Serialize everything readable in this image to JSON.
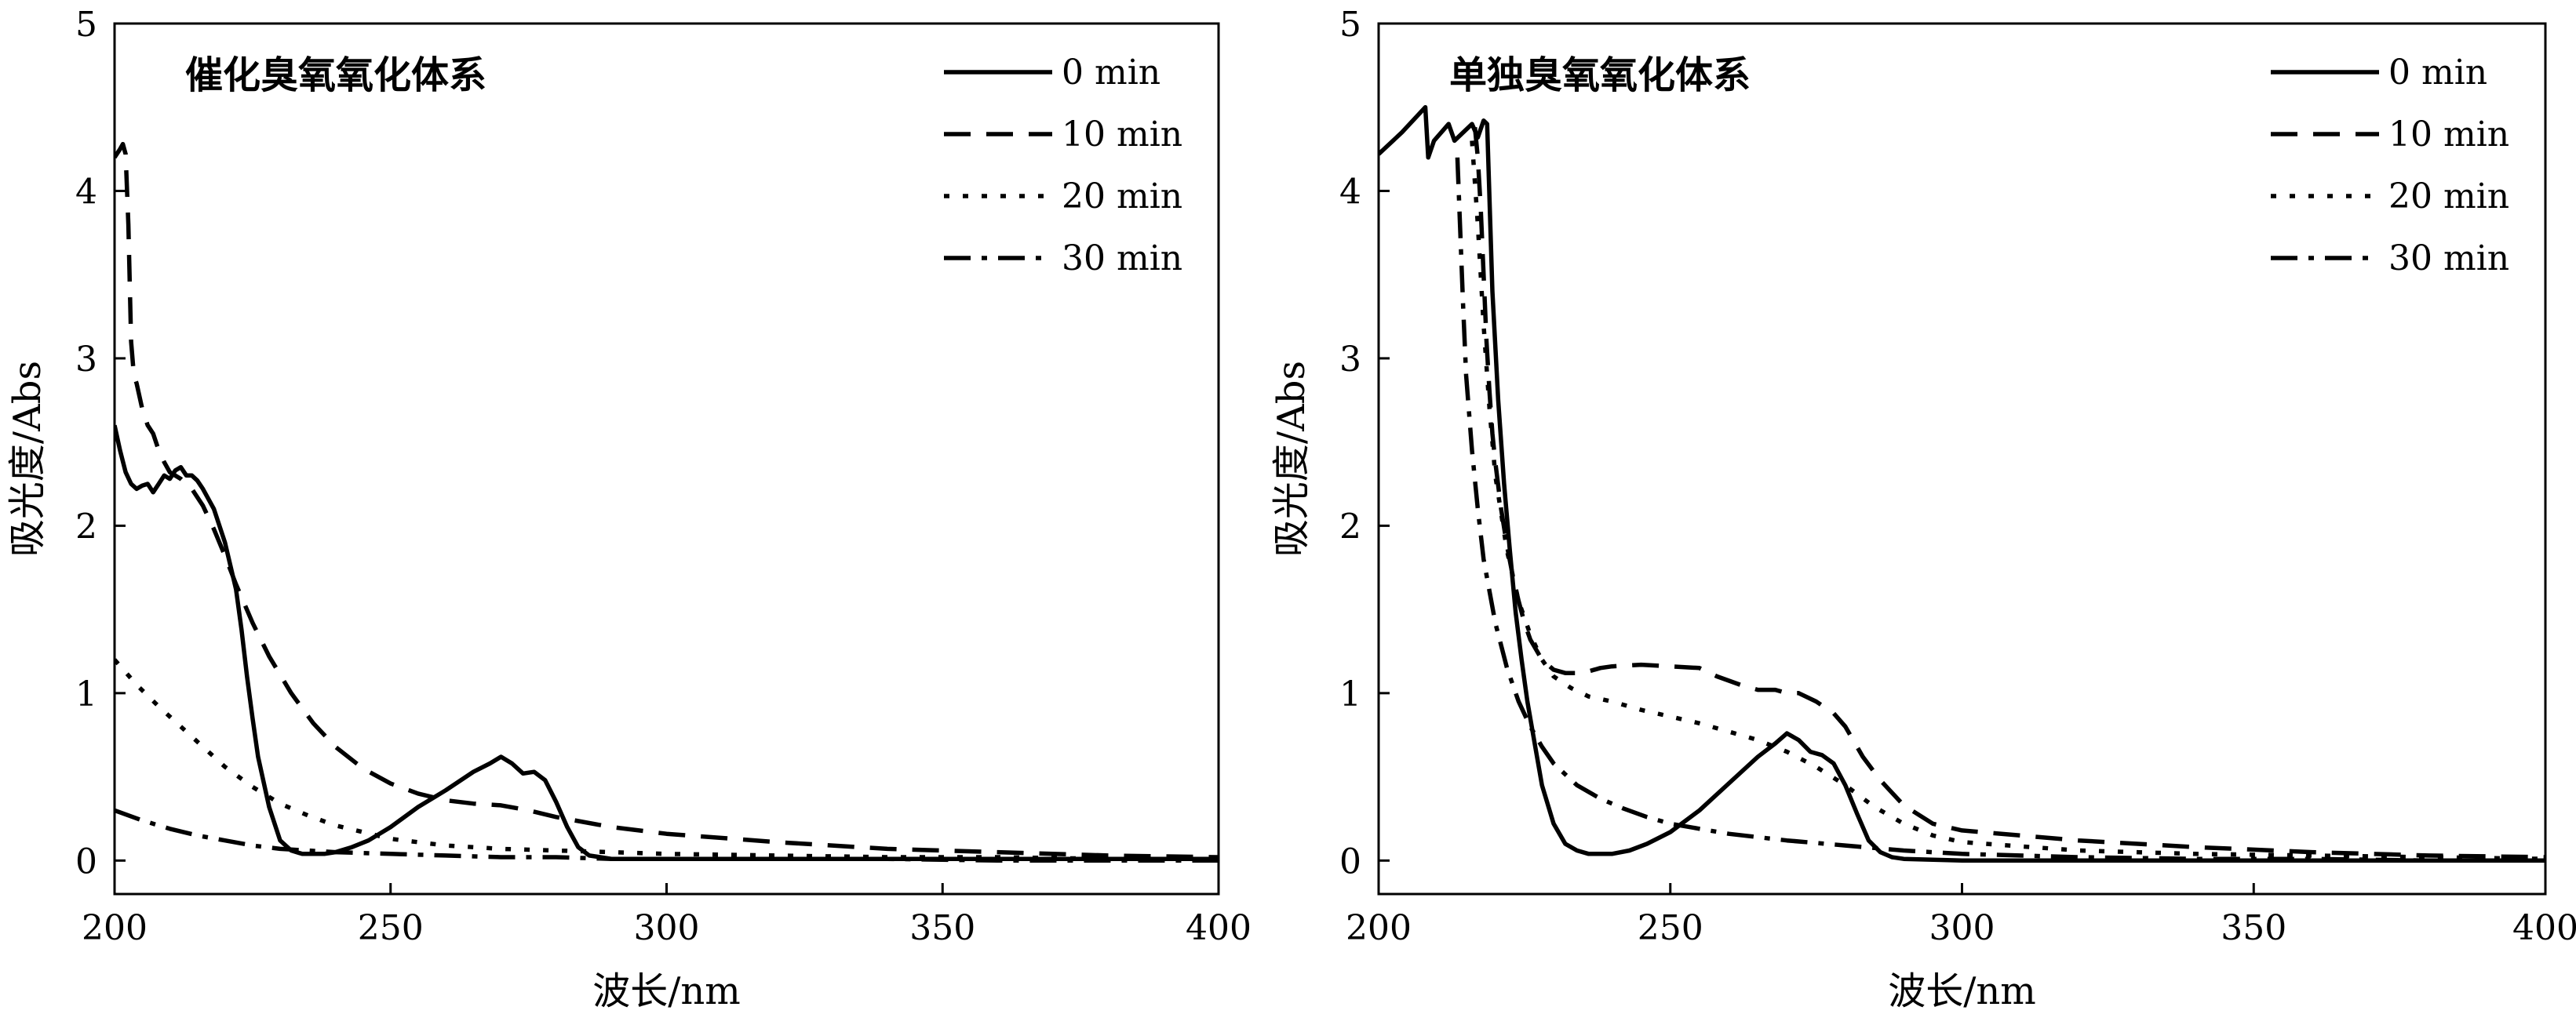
{
  "figure": {
    "panels": [
      "left",
      "right"
    ]
  },
  "chart_data": [
    {
      "type": "line",
      "title": "催化臭氧氧化体系",
      "xlabel": "波长/nm",
      "ylabel": "吸光度/Abs",
      "xlim": [
        200,
        400
      ],
      "ylim": [
        -0.2,
        5
      ],
      "xticks": [
        200,
        250,
        300,
        350,
        400
      ],
      "yticks": [
        0,
        1,
        2,
        3,
        4,
        5
      ],
      "xtick_labels": [
        "200",
        "250",
        "300",
        "350",
        "400"
      ],
      "ytick_labels": [
        "0",
        "1",
        "2",
        "3",
        "4",
        "5"
      ],
      "legend": "top-right",
      "grid": false,
      "series": [
        {
          "name": "0 min",
          "style": "solid",
          "x": [
            200,
            201,
            202,
            203,
            204,
            205,
            206,
            207,
            208,
            209,
            210,
            211,
            212,
            213,
            214,
            215,
            216,
            218,
            220,
            222,
            223,
            224,
            225,
            226,
            228,
            230,
            232,
            234,
            236,
            238,
            240,
            243,
            246,
            250,
            255,
            260,
            265,
            268,
            270,
            272,
            274,
            276,
            278,
            280,
            282,
            284,
            286,
            288,
            290,
            300,
            320,
            340,
            360,
            380,
            400
          ],
          "y": [
            2.6,
            2.45,
            2.32,
            2.25,
            2.22,
            2.24,
            2.25,
            2.2,
            2.25,
            2.3,
            2.28,
            2.33,
            2.35,
            2.3,
            2.3,
            2.27,
            2.22,
            2.1,
            1.9,
            1.62,
            1.38,
            1.1,
            0.85,
            0.62,
            0.32,
            0.12,
            0.06,
            0.04,
            0.04,
            0.04,
            0.05,
            0.08,
            0.12,
            0.2,
            0.32,
            0.42,
            0.53,
            0.58,
            0.62,
            0.58,
            0.52,
            0.53,
            0.48,
            0.35,
            0.2,
            0.08,
            0.03,
            0.02,
            0.01,
            0.01,
            0.01,
            0.01,
            0.01,
            0.01,
            0.01
          ]
        },
        {
          "name": "10 min",
          "style": "dashed",
          "x": [
            200,
            201,
            201.5,
            202,
            202.5,
            203,
            203.5,
            204,
            205,
            206,
            207,
            208,
            209,
            210,
            212,
            214,
            216,
            218,
            220,
            222,
            225,
            228,
            232,
            236,
            240,
            245,
            250,
            255,
            260,
            265,
            270,
            275,
            280,
            290,
            300,
            320,
            340,
            360,
            380,
            400
          ],
          "y": [
            4.2,
            4.25,
            4.28,
            4.22,
            3.8,
            3.1,
            2.9,
            2.85,
            2.7,
            2.6,
            2.55,
            2.45,
            2.38,
            2.32,
            2.28,
            2.22,
            2.12,
            1.98,
            1.82,
            1.65,
            1.42,
            1.22,
            1.0,
            0.82,
            0.68,
            0.55,
            0.46,
            0.4,
            0.36,
            0.34,
            0.33,
            0.3,
            0.26,
            0.2,
            0.16,
            0.11,
            0.07,
            0.05,
            0.03,
            0.02
          ]
        },
        {
          "name": "20 min",
          "style": "dotted",
          "x": [
            200,
            204,
            208,
            212,
            216,
            220,
            225,
            230,
            235,
            240,
            245,
            250,
            260,
            270,
            280,
            290,
            300,
            320,
            340,
            360,
            380,
            400
          ],
          "y": [
            1.2,
            1.05,
            0.92,
            0.8,
            0.68,
            0.56,
            0.44,
            0.34,
            0.27,
            0.21,
            0.17,
            0.13,
            0.09,
            0.07,
            0.06,
            0.05,
            0.04,
            0.03,
            0.02,
            0.02,
            0.01,
            0.01
          ]
        },
        {
          "name": "30 min",
          "style": "dashdot",
          "x": [
            200,
            205,
            210,
            215,
            220,
            225,
            230,
            240,
            250,
            260,
            270,
            280,
            290,
            300,
            320,
            340,
            360,
            380,
            400
          ],
          "y": [
            0.3,
            0.24,
            0.19,
            0.15,
            0.12,
            0.09,
            0.07,
            0.05,
            0.04,
            0.03,
            0.02,
            0.02,
            0.01,
            0.01,
            0.01,
            0.01,
            0.0,
            0.0,
            0.0
          ]
        }
      ]
    },
    {
      "type": "line",
      "title": "单独臭氧氧化体系",
      "xlabel": "波长/nm",
      "ylabel": "吸光度/Abs",
      "xlim": [
        200,
        400
      ],
      "ylim": [
        -0.2,
        5
      ],
      "xticks": [
        200,
        250,
        300,
        350,
        400
      ],
      "yticks": [
        0,
        1,
        2,
        3,
        4,
        5
      ],
      "xtick_labels": [
        "200",
        "250",
        "300",
        "350",
        "400"
      ],
      "ytick_labels": [
        "0",
        "1",
        "2",
        "3",
        "4",
        "5"
      ],
      "legend": "top-right",
      "grid": false,
      "series": [
        {
          "name": "0 min",
          "style": "solid",
          "x": [
            200,
            204,
            208,
            208.5,
            209.5,
            212,
            213,
            216,
            217,
            218,
            218.6,
            219.5,
            220.5,
            221.5,
            222.5,
            223.5,
            224.5,
            225.5,
            226.5,
            228,
            230,
            232,
            234,
            236,
            238,
            240,
            243,
            246,
            250,
            255,
            260,
            265,
            268,
            270,
            272,
            274,
            276,
            278,
            280,
            282,
            284,
            286,
            288,
            290,
            300,
            320,
            340,
            360,
            380,
            400
          ],
          "y": [
            4.22,
            4.35,
            4.5,
            4.2,
            4.3,
            4.4,
            4.3,
            4.4,
            4.32,
            4.42,
            4.4,
            3.4,
            2.75,
            2.25,
            1.85,
            1.48,
            1.2,
            0.95,
            0.75,
            0.45,
            0.22,
            0.1,
            0.06,
            0.04,
            0.04,
            0.04,
            0.06,
            0.1,
            0.17,
            0.3,
            0.46,
            0.62,
            0.7,
            0.76,
            0.72,
            0.65,
            0.63,
            0.58,
            0.45,
            0.28,
            0.12,
            0.05,
            0.02,
            0.01,
            0.0,
            0.0,
            0.0,
            0.0,
            0.0,
            0.0
          ]
        },
        {
          "name": "10 min",
          "style": "dashed",
          "x": [
            216.5,
            217,
            217.5,
            218,
            218.5,
            219,
            219.5,
            220,
            221,
            222,
            223,
            224,
            225,
            226,
            228,
            230,
            232,
            235,
            238,
            240,
            245,
            250,
            255,
            258,
            262,
            265,
            268,
            270,
            272,
            275,
            278,
            280,
            283,
            286,
            290,
            295,
            300,
            320,
            340,
            360,
            380,
            400
          ],
          "y": [
            4.38,
            4.2,
            3.9,
            3.5,
            3.1,
            2.8,
            2.55,
            2.38,
            2.1,
            1.88,
            1.7,
            1.55,
            1.42,
            1.32,
            1.2,
            1.14,
            1.12,
            1.12,
            1.15,
            1.16,
            1.17,
            1.16,
            1.15,
            1.1,
            1.05,
            1.02,
            1.02,
            1.0,
            1.0,
            0.95,
            0.88,
            0.8,
            0.62,
            0.48,
            0.33,
            0.22,
            0.18,
            0.12,
            0.08,
            0.05,
            0.03,
            0.02
          ]
        },
        {
          "name": "20 min",
          "style": "dotted",
          "x": [
            216,
            217,
            218,
            219,
            220,
            222,
            224,
            226,
            228,
            230,
            233,
            236,
            240,
            245,
            250,
            255,
            260,
            265,
            270,
            275,
            280,
            285,
            290,
            295,
            300,
            320,
            340,
            360,
            380,
            400
          ],
          "y": [
            4.3,
            3.8,
            3.2,
            2.7,
            2.3,
            1.85,
            1.55,
            1.35,
            1.2,
            1.1,
            1.03,
            0.98,
            0.95,
            0.9,
            0.86,
            0.82,
            0.77,
            0.72,
            0.65,
            0.56,
            0.45,
            0.32,
            0.22,
            0.15,
            0.11,
            0.06,
            0.04,
            0.03,
            0.02,
            0.01
          ]
        },
        {
          "name": "30 min",
          "style": "dashdot",
          "x": [
            213.5,
            214,
            214.5,
            215,
            216,
            217,
            218,
            220,
            222,
            224,
            226,
            228,
            230,
            234,
            238,
            242,
            246,
            250,
            255,
            260,
            270,
            280,
            290,
            300,
            320,
            340,
            360,
            380,
            400
          ],
          "y": [
            4.2,
            3.75,
            3.3,
            2.9,
            2.45,
            2.1,
            1.8,
            1.42,
            1.15,
            0.95,
            0.8,
            0.68,
            0.58,
            0.45,
            0.37,
            0.31,
            0.26,
            0.22,
            0.19,
            0.16,
            0.12,
            0.09,
            0.06,
            0.04,
            0.02,
            0.01,
            0.01,
            0.0,
            0.0
          ]
        }
      ]
    }
  ]
}
